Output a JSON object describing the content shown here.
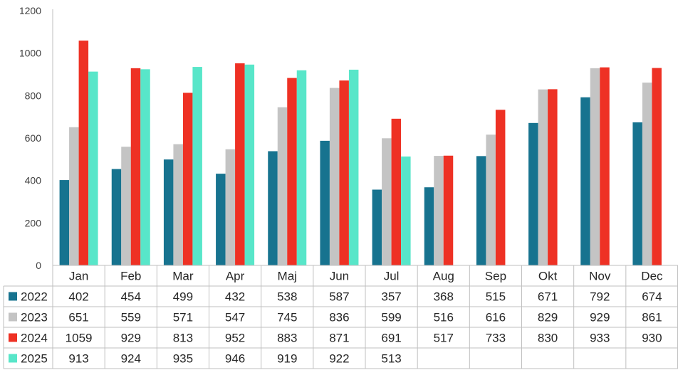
{
  "chart_data": {
    "type": "bar",
    "title": "",
    "xlabel": "",
    "ylabel": "",
    "ylim": [
      0,
      1200
    ],
    "yticks": [
      0,
      200,
      400,
      600,
      800,
      1000,
      1200
    ],
    "grid": false,
    "legend": "data-table-left",
    "categories": [
      "Jan",
      "Feb",
      "Mar",
      "Apr",
      "Maj",
      "Jun",
      "Jul",
      "Aug",
      "Sep",
      "Okt",
      "Nov",
      "Dec"
    ],
    "series": [
      {
        "name": "2022",
        "color": "#17738f",
        "values": [
          402,
          454,
          499,
          432,
          538,
          587,
          357,
          368,
          515,
          671,
          792,
          674
        ]
      },
      {
        "name": "2023",
        "color": "#c4c4c4",
        "values": [
          651,
          559,
          571,
          547,
          745,
          836,
          599,
          516,
          616,
          829,
          929,
          861
        ]
      },
      {
        "name": "2024",
        "color": "#ee3124",
        "values": [
          1059,
          929,
          813,
          952,
          883,
          871,
          691,
          517,
          733,
          830,
          933,
          930
        ]
      },
      {
        "name": "2025",
        "color": "#58e6c9",
        "values": [
          913,
          924,
          935,
          946,
          919,
          922,
          513,
          null,
          null,
          null,
          null,
          null
        ]
      }
    ]
  }
}
